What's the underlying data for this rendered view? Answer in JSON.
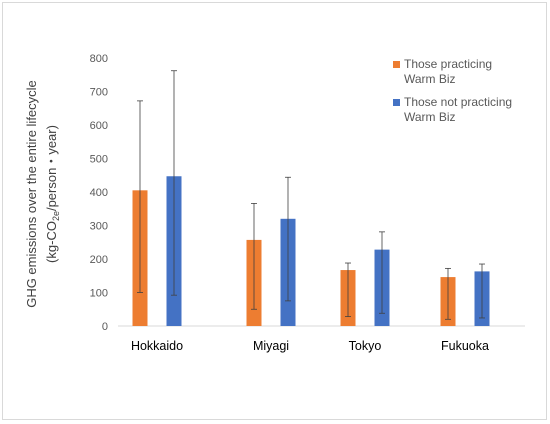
{
  "chart_data": {
    "type": "bar",
    "categories": [
      "Hokkaido",
      "Miyagi",
      "Tokyo",
      "Fukuoka"
    ],
    "series": [
      {
        "name": "Those practicing Warm Biz",
        "color": "#ED7D31",
        "values": [
          405,
          257,
          167,
          146
        ],
        "error_low": [
          100,
          50,
          28,
          20
        ],
        "error_high": [
          672,
          366,
          188,
          172
        ]
      },
      {
        "name": "Those not practicing Warm Biz",
        "color": "#4472C4",
        "values": [
          447,
          320,
          228,
          163
        ],
        "error_low": [
          92,
          75,
          38,
          24
        ],
        "error_high": [
          762,
          444,
          281,
          185
        ]
      }
    ],
    "ylabel_line1": "GHG emissions over the entire lifecycle",
    "ylabel_line2_prefix": "(kg-CO",
    "ylabel_line2_sub": "2e",
    "ylabel_line2_suffix": "/person・year)",
    "ylim": [
      0,
      800
    ],
    "yticks": [
      "0",
      "100",
      "200",
      "300",
      "400",
      "500",
      "600",
      "700",
      "800"
    ],
    "legend_lines": [
      [
        "Those practicing",
        "Warm Biz"
      ],
      [
        "Those not practicing",
        "Warm Biz"
      ]
    ],
    "legend_position": "top-right",
    "grid": false
  }
}
